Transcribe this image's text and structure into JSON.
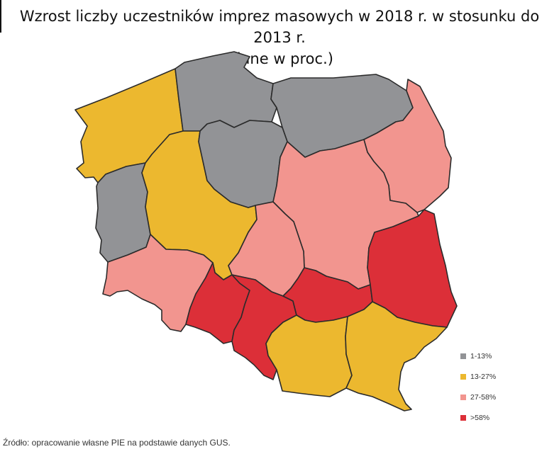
{
  "title_line1": "Wzrost liczby uczestników imprez masowych w 2018 r. w stosunku do 2013 r.",
  "title_line2": "(dane w proc.)",
  "legend": [
    {
      "label": "1-13%",
      "color": "#929396"
    },
    {
      "label": "13-27%",
      "color": "#ecb82f"
    },
    {
      "label": "27-58%",
      "color": "#f2958f"
    },
    {
      "label": ">58%",
      "color": "#dc2f38"
    }
  ],
  "source": "Źródło: opracowanie własne PIE na podstawie danych GUS.",
  "regions": [
    {
      "name": "zachodniopomorskie",
      "category": "13-27%"
    },
    {
      "name": "pomorskie",
      "category": "1-13%"
    },
    {
      "name": "warmińsko-mazurskie",
      "category": "1-13%"
    },
    {
      "name": "podlaskie",
      "category": "27-58%"
    },
    {
      "name": "lubuskie",
      "category": "1-13%"
    },
    {
      "name": "wielkopolskie",
      "category": "13-27%"
    },
    {
      "name": "kujawsko-pomorskie",
      "category": "1-13%"
    },
    {
      "name": "mazowieckie",
      "category": "27-58%"
    },
    {
      "name": "łódzkie",
      "category": "27-58%"
    },
    {
      "name": "dolnośląskie",
      "category": "27-58%"
    },
    {
      "name": "opolskie",
      "category": ">58%"
    },
    {
      "name": "śląskie",
      "category": ">58%"
    },
    {
      "name": "świętokrzyskie",
      "category": ">58%"
    },
    {
      "name": "lubelskie",
      "category": ">58%"
    },
    {
      "name": "małopolskie",
      "category": "13-27%"
    },
    {
      "name": "podkarpackie",
      "category": "13-27%"
    }
  ]
}
